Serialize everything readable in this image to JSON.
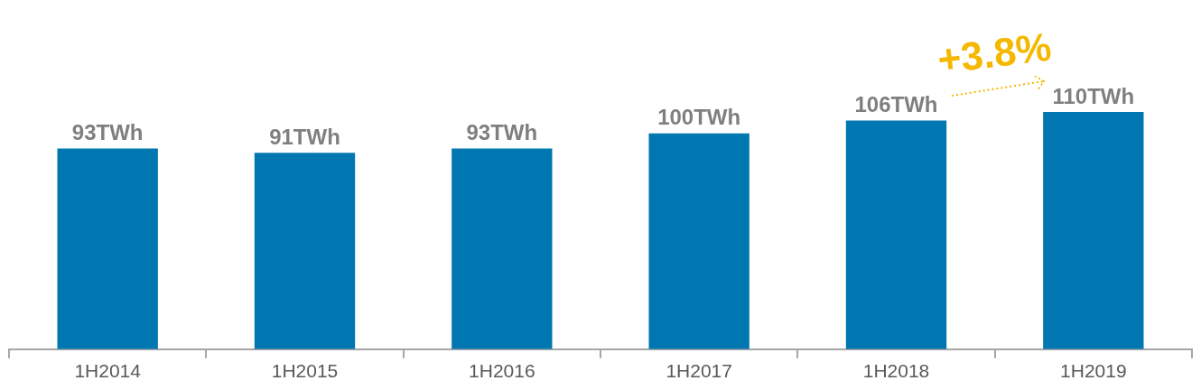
{
  "chart_data": {
    "type": "bar",
    "categories": [
      "1H2014",
      "1H2015",
      "1H2016",
      "1H2017",
      "1H2018",
      "1H2019"
    ],
    "values": [
      93,
      91,
      93,
      100,
      106,
      110
    ],
    "value_labels": [
      "93TWh",
      "91TWh",
      "93TWh",
      "100TWh",
      "106TWh",
      "110TWh"
    ],
    "color": "#0077b0",
    "annotations": [
      "+3.8%"
    ],
    "legend": false
  }
}
